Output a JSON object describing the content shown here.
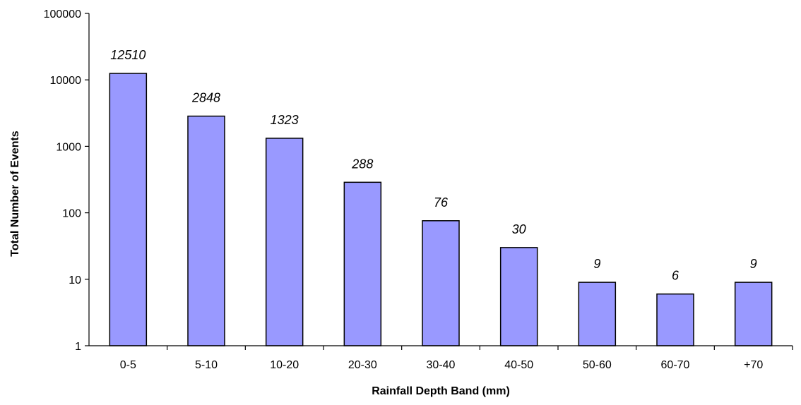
{
  "chart_data": {
    "type": "bar",
    "xlabel": "Rainfall Depth Band (mm)",
    "ylabel": "Total Number of Events",
    "yscale": "log",
    "ylim": [
      1,
      100000
    ],
    "yticks": [
      "1",
      "10",
      "100",
      "1000",
      "10000",
      "100000"
    ],
    "categories": [
      "0-5",
      "5-10",
      "10-20",
      "20-30",
      "30-40",
      "40-50",
      "50-60",
      "60-70",
      "+70"
    ],
    "values": [
      12510,
      2848,
      1323,
      288,
      76,
      30,
      9,
      6,
      9
    ],
    "data_labels": [
      "12510",
      "2848",
      "1323",
      "288",
      "76",
      "30",
      "9",
      "6",
      "9"
    ],
    "bar_color": "#9999ff",
    "grid": false,
    "legend": "none"
  }
}
